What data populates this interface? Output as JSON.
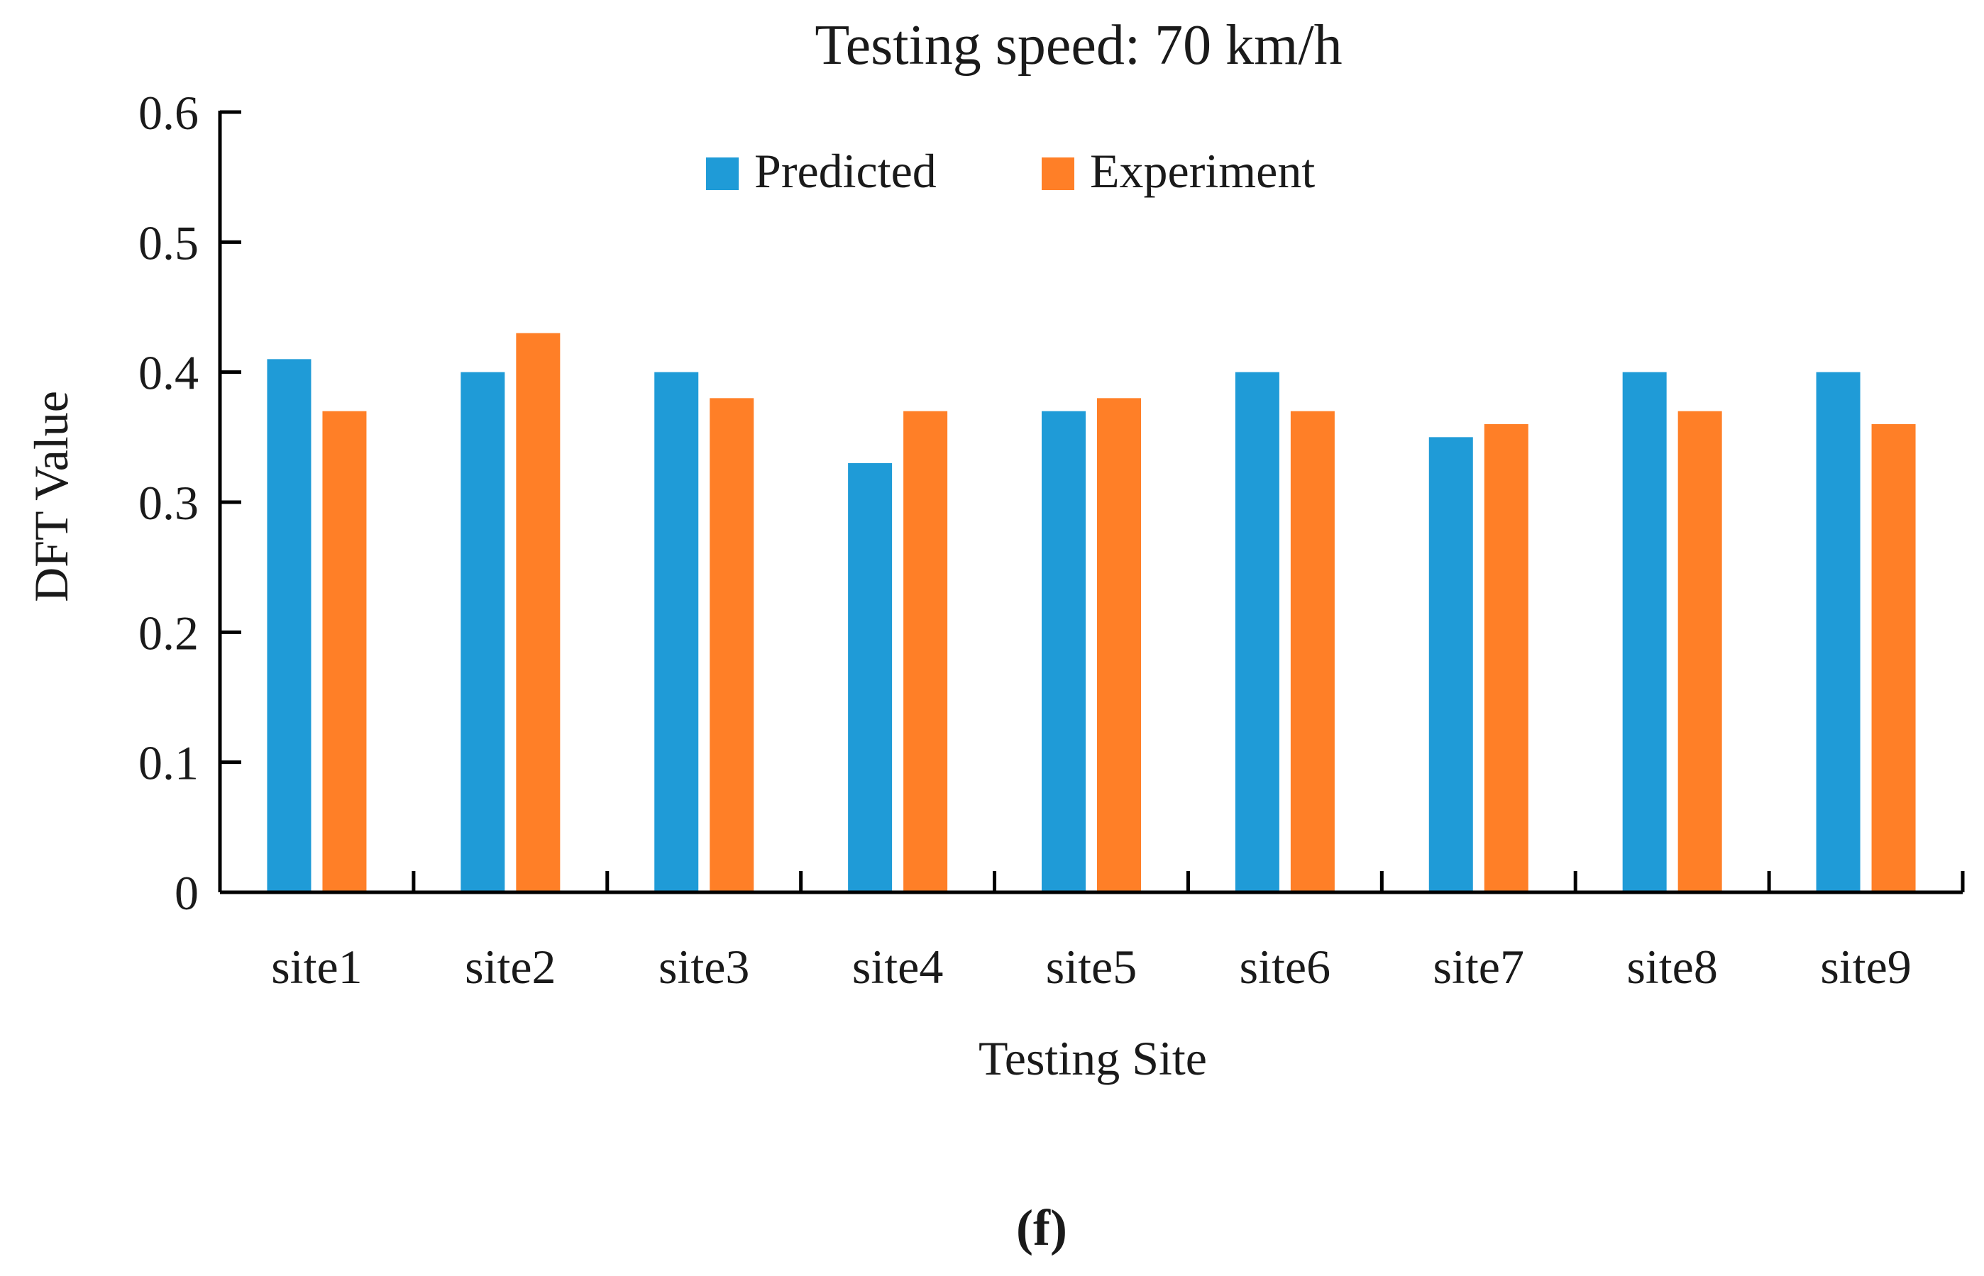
{
  "chart_data": {
    "type": "bar",
    "title": "Testing speed: 70 km/h",
    "xlabel": "Testing Site",
    "ylabel": "DFT Value",
    "categories": [
      "site1",
      "site2",
      "site3",
      "site4",
      "site5",
      "site6",
      "site7",
      "site8",
      "site9"
    ],
    "series": [
      {
        "name": "Predicted",
        "color": "#1F9BD7",
        "values": [
          0.41,
          0.4,
          0.4,
          0.33,
          0.37,
          0.4,
          0.35,
          0.4,
          0.4
        ]
      },
      {
        "name": "Experiment",
        "color": "#FF7F27",
        "values": [
          0.37,
          0.43,
          0.38,
          0.37,
          0.38,
          0.37,
          0.36,
          0.37,
          0.36
        ]
      }
    ],
    "ylim": [
      0,
      0.6
    ],
    "yticks": [
      "0",
      "0.1",
      "0.2",
      "0.3",
      "0.4",
      "0.5",
      "0.6"
    ],
    "grid": false,
    "legend_position": "top-center"
  },
  "panel_label": "(f)"
}
